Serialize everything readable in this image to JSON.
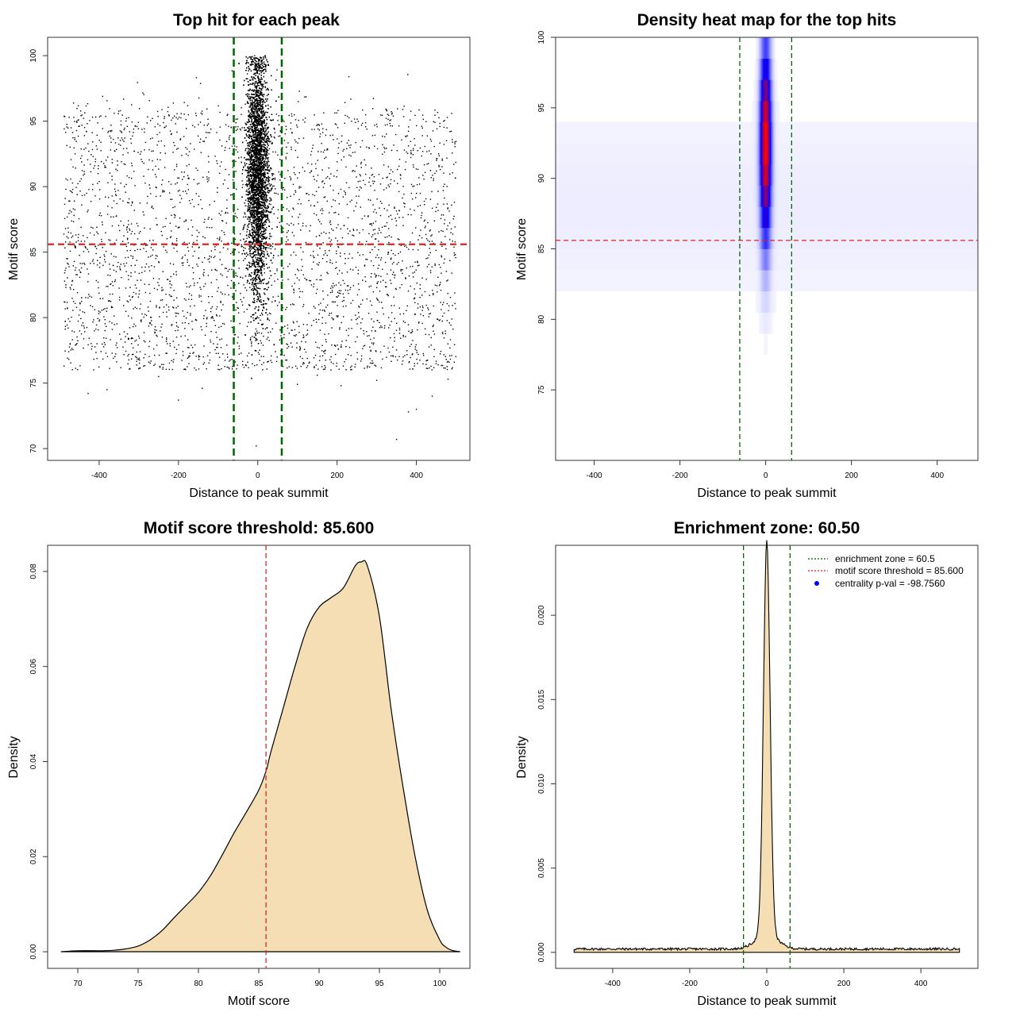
{
  "chart_data": [
    {
      "type": "scatter",
      "title": "Top hit for each peak",
      "xlabel": "Distance to peak summit",
      "ylabel": "Motif score",
      "xlim": [
        -530,
        535
      ],
      "ylim": [
        69.1,
        101.4
      ],
      "xticks": [
        "-400",
        "-200",
        "0",
        "200",
        "400"
      ],
      "yticks": [
        "70",
        "75",
        "80",
        "85",
        "90",
        "95",
        "100"
      ],
      "xtick_values": [
        -400,
        -200,
        0,
        200,
        400
      ],
      "ytick_values": [
        70,
        75,
        80,
        85,
        90,
        95,
        100
      ],
      "hline": {
        "y": 85.6,
        "color": "#dd2222",
        "style": "dashed"
      },
      "vlines": {
        "x": [
          -60.5,
          60.5
        ],
        "color": "#006600",
        "style": "dashed"
      },
      "point_color": "#000000",
      "background_range": {
        "x": [
          -490,
          500
        ],
        "y": [
          76,
          99.5
        ]
      },
      "background_count": 3200,
      "central_cluster": {
        "x_center": 0,
        "x_sd": 14,
        "y_center": 91,
        "y_sd": 4.6,
        "y_max": 100,
        "count": 9000
      },
      "outliers": [
        {
          "x": -428,
          "y": 74.2
        },
        {
          "x": -380,
          "y": 74.5
        },
        {
          "x": -250,
          "y": 75.5
        },
        {
          "x": -200,
          "y": 73.7
        },
        {
          "x": -4,
          "y": 70.2
        },
        {
          "x": 350,
          "y": 70.7
        },
        {
          "x": 380,
          "y": 72.8
        },
        {
          "x": 400,
          "y": 73.0
        },
        {
          "x": 440,
          "y": 74.0
        },
        {
          "x": 300,
          "y": 75.2
        },
        {
          "x": 210,
          "y": 74.8
        },
        {
          "x": 480,
          "y": 75.3
        },
        {
          "x": -140,
          "y": 74.6
        },
        {
          "x": -60,
          "y": 75.4
        },
        {
          "x": 100,
          "y": 74.9
        },
        {
          "x": 150,
          "y": 75.6
        }
      ]
    },
    {
      "type": "heatmap",
      "title": "Density heat map for the top hits",
      "xlabel": "Distance to peak summit",
      "ylabel": "Motif score",
      "xlim": [
        -490,
        495
      ],
      "ylim": [
        70,
        100
      ],
      "xticks": [
        "-400",
        "-200",
        "0",
        "200",
        "400"
      ],
      "yticks": [
        "75",
        "80",
        "85",
        "90",
        "95",
        "100"
      ],
      "xtick_values": [
        -400,
        -200,
        0,
        200,
        400
      ],
      "ytick_values": [
        75,
        80,
        85,
        90,
        95,
        100
      ],
      "hline": {
        "y": 85.6,
        "color": "#dd2222",
        "style": "dashed"
      },
      "vlines": {
        "x": [
          -60.5,
          60.5
        ],
        "color": "#006600",
        "style": "dashed"
      },
      "palette": [
        "#ffffff",
        "#0000ff",
        "#ff0000"
      ],
      "hotspot": {
        "x_center": 0,
        "x_sd": 9,
        "y_center": 92.5,
        "y_sd": 4.8,
        "y_max": 100
      }
    },
    {
      "type": "area",
      "title": "Motif score threshold: 85.600",
      "xlabel": "Motif score",
      "ylabel": "Density",
      "xlim": [
        67.5,
        102.5
      ],
      "ylim": [
        -0.0035,
        0.0855
      ],
      "xticks": [
        "70",
        "75",
        "80",
        "85",
        "90",
        "95",
        "100"
      ],
      "yticks": [
        "0.00",
        "0.02",
        "0.04",
        "0.06",
        "0.08"
      ],
      "xtick_values": [
        70,
        75,
        80,
        85,
        90,
        95,
        100
      ],
      "ytick_values": [
        0,
        0.02,
        0.04,
        0.06,
        0.08
      ],
      "vline": {
        "x": 85.6,
        "color": "#dd2222",
        "style": "dashed"
      },
      "fill_color": "#f5deb3",
      "x": [
        68.6,
        70,
        72,
        73,
        74,
        75,
        76,
        77,
        78,
        79,
        80,
        81,
        82,
        83,
        84,
        85,
        85.6,
        86,
        87,
        88,
        89,
        90,
        91,
        92,
        93,
        93.5,
        94,
        95,
        96,
        97,
        98,
        99,
        100,
        100.5,
        101,
        101.7
      ],
      "y": [
        0,
        0.0002,
        0.0002,
        0.0003,
        0.0006,
        0.0012,
        0.0025,
        0.0045,
        0.0072,
        0.0098,
        0.0125,
        0.016,
        0.0205,
        0.0252,
        0.0295,
        0.034,
        0.038,
        0.042,
        0.051,
        0.06,
        0.068,
        0.0725,
        0.0745,
        0.0765,
        0.0812,
        0.082,
        0.0812,
        0.0705,
        0.0505,
        0.034,
        0.0195,
        0.0085,
        0.0025,
        0.001,
        0.0003,
        0
      ]
    },
    {
      "type": "area",
      "title": "Enrichment zone: 60.50",
      "xlabel": "Distance to peak summit",
      "ylabel": "Density",
      "xlim": [
        -548,
        548
      ],
      "ylim": [
        -0.00095,
        0.02415
      ],
      "xticks": [
        "-400",
        "-200",
        "0",
        "200",
        "400"
      ],
      "yticks": [
        "0.000",
        "0.005",
        "0.010",
        "0.015",
        "0.020"
      ],
      "xtick_values": [
        -400,
        -200,
        0,
        200,
        400
      ],
      "ytick_values": [
        0,
        0.005,
        0.01,
        0.015,
        0.02
      ],
      "vlines": {
        "x": [
          -60.5,
          60.5
        ],
        "color": "#006600",
        "style": "dashed"
      },
      "fill_color": "#f5deb3",
      "baseline_density": 0.0002,
      "peak": {
        "x_center": 0,
        "sd": 8.5,
        "height": 0.0233
      },
      "x_range": [
        -500,
        500
      ],
      "legend": [
        {
          "label": "enrichment zone = 60.5",
          "color": "#006600",
          "symbol": "dotted-line"
        },
        {
          "label": "motif score threshold = 85.600",
          "color": "#dd2222",
          "symbol": "dotted-line"
        },
        {
          "label": "centrality p-val = -98.7560",
          "color": "#0000ff",
          "symbol": "dot"
        }
      ],
      "legend_position": "top-right"
    }
  ]
}
